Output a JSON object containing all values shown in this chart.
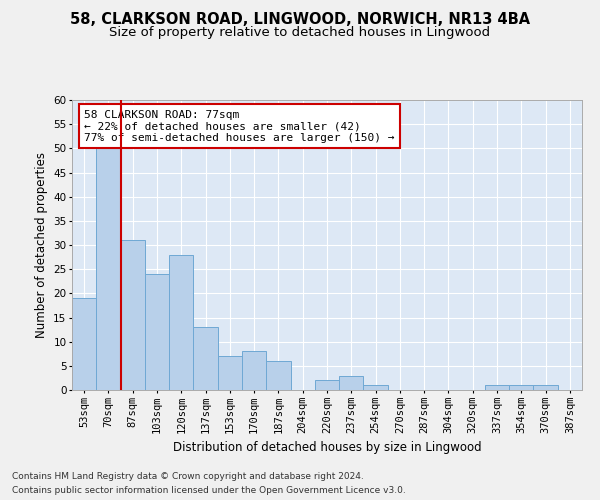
{
  "title1": "58, CLARKSON ROAD, LINGWOOD, NORWICH, NR13 4BA",
  "title2": "Size of property relative to detached houses in Lingwood",
  "xlabel": "Distribution of detached houses by size in Lingwood",
  "ylabel": "Number of detached properties",
  "bar_labels": [
    "53sqm",
    "70sqm",
    "87sqm",
    "103sqm",
    "120sqm",
    "137sqm",
    "153sqm",
    "170sqm",
    "187sqm",
    "204sqm",
    "220sqm",
    "237sqm",
    "254sqm",
    "270sqm",
    "287sqm",
    "304sqm",
    "320sqm",
    "337sqm",
    "354sqm",
    "370sqm",
    "387sqm"
  ],
  "bar_values": [
    19,
    50,
    31,
    24,
    28,
    13,
    7,
    8,
    6,
    0,
    2,
    3,
    1,
    0,
    0,
    0,
    0,
    1,
    1,
    1,
    0
  ],
  "bar_color": "#b8d0ea",
  "bar_edge_color": "#6fa8d4",
  "background_color": "#dde8f5",
  "fig_background_color": "#f0f0f0",
  "grid_color": "#ffffff",
  "vline_color": "#cc0000",
  "annotation_text": "58 CLARKSON ROAD: 77sqm\n← 22% of detached houses are smaller (42)\n77% of semi-detached houses are larger (150) →",
  "annotation_box_color": "#ffffff",
  "annotation_box_edge": "#cc0000",
  "ylim": [
    0,
    60
  ],
  "yticks": [
    0,
    5,
    10,
    15,
    20,
    25,
    30,
    35,
    40,
    45,
    50,
    55,
    60
  ],
  "footnote1": "Contains HM Land Registry data © Crown copyright and database right 2024.",
  "footnote2": "Contains public sector information licensed under the Open Government Licence v3.0.",
  "title1_fontsize": 10.5,
  "title2_fontsize": 9.5,
  "xlabel_fontsize": 8.5,
  "ylabel_fontsize": 8.5,
  "tick_fontsize": 7.5,
  "annotation_fontsize": 8,
  "footnote_fontsize": 6.5
}
